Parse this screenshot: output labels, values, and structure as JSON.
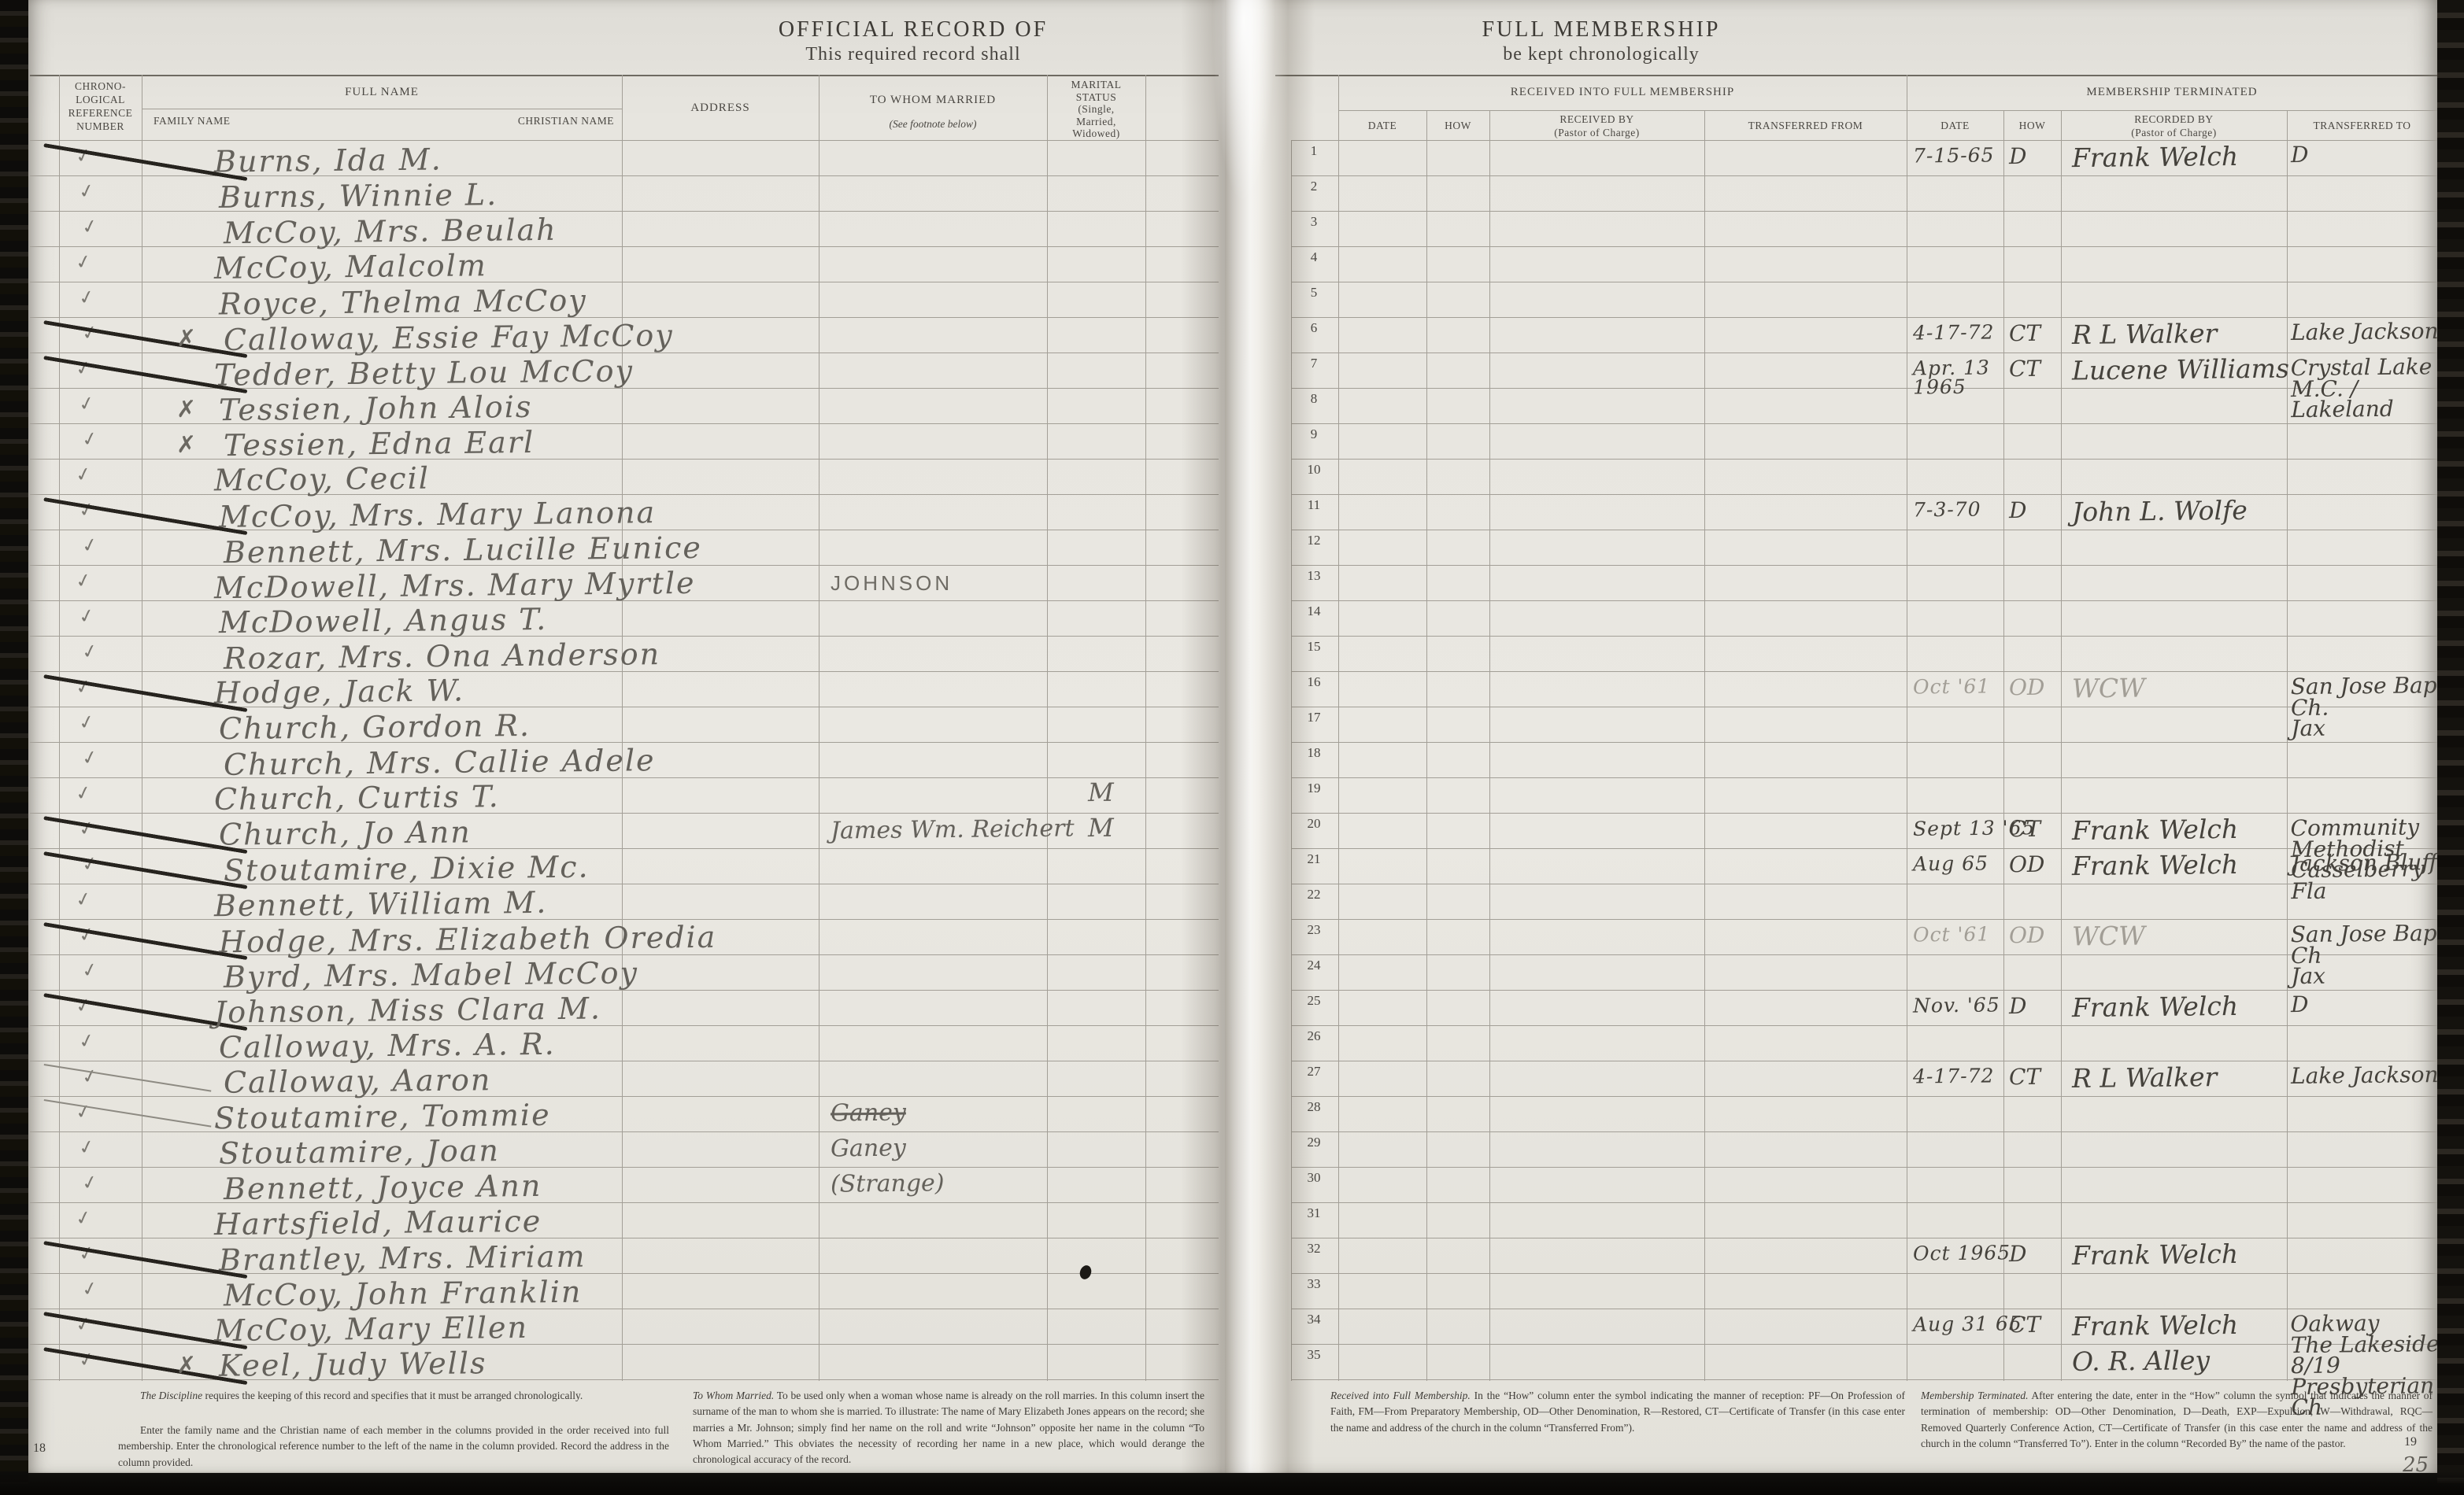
{
  "left": {
    "title": "OFFICIAL RECORD OF",
    "subtitle": "This required record shall",
    "page_number": "18",
    "columns": {
      "chrono": "CHRONO-\nLOGICAL\nREFERENCE\nNUMBER",
      "full_name": "FULL NAME",
      "family_name": "FAMILY NAME",
      "christian_name": "CHRISTIAN NAME",
      "address": "ADDRESS",
      "to_whom_married": "TO WHOM MARRIED",
      "to_whom_married_note": "(See footnote below)",
      "marital": "MARITAL\nSTATUS\n(Single,\nMarried,\nWidowed)"
    },
    "footnotes": {
      "fn1_lead": "The Discipline",
      "fn1_rest": " requires the keeping of this record and specifies that it must be arranged chronologically.",
      "fn2": "Enter the family name and the Christian name of each member in the columns provided in the order received into full membership. Enter the chronological reference number to the left of the name in the column provided. Record the address in the column provided.",
      "fn3_lead": "To Whom Married.",
      "fn3_rest": " To be used only when a woman whose name is already on the roll marries. In this column insert the surname of the man to whom she is married. To illustrate: The name of Mary Elizabeth Jones appears on the record; she marries a Mr. Johnson; simply find her name on the roll and write “Johnson” opposite her name in the column “To Whom Married.” This obviates the necessity of recording her name in a new place, which would derange the chronological accuracy of the record."
    }
  },
  "right": {
    "title": "FULL MEMBERSHIP",
    "subtitle": "be kept chronologically",
    "page_number": "19",
    "page_number_pencil": "25",
    "columns": {
      "received_span": "RECEIVED INTO FULL MEMBERSHIP",
      "terminated_span": "MEMBERSHIP TERMINATED",
      "date": "DATE",
      "how": "HOW",
      "received_by": "RECEIVED BY\n(Pastor of Charge)",
      "transferred_from": "TRANSFERRED FROM",
      "recorded_by": "RECORDED BY\n(Pastor of Charge)",
      "transferred_to": "TRANSFERRED TO"
    },
    "footnotes": {
      "fn1_lead": "Received into Full Membership.",
      "fn1_rest": " In the “How” column enter the symbol indicating the manner of reception: PF—On Profession of Faith, FM—From Preparatory Membership, OD—Other Denomination, R—Restored, CT—Certificate of Transfer (in this case enter the name and address of the church in the column “Transferred From”).",
      "fn2_lead": "Membership Terminated.",
      "fn2_rest": " After entering the date, enter in the “How” column the symbol that indicates the manner of termination of membership: OD—Other Denomination, D—Death, EXP—Expulsion, W—Withdrawal, RQC—Removed Quarterly Conference Action, CT—Certificate of Transfer (in this case enter the name and address of the church in the column “Transferred To”). Enter in the column “Recorded By” the name of the pastor."
    }
  },
  "marks": {
    "check_glyph": "✓",
    "x_glyph": "✗"
  },
  "rows": [
    {
      "n": "1",
      "name": "Burns, Ida M.",
      "check": true,
      "strike": "heavy",
      "t_date": "7-15-65",
      "t_how": "D",
      "t_rec": "Frank Welch",
      "t_to": "D"
    },
    {
      "n": "2",
      "name": "Burns, Winnie L.",
      "check": true
    },
    {
      "n": "3",
      "name": "McCoy, Mrs. Beulah",
      "check": true
    },
    {
      "n": "4",
      "name": "McCoy, Malcolm",
      "check": true
    },
    {
      "n": "5",
      "name": "Royce, Thelma McCoy",
      "check": true
    },
    {
      "n": "6",
      "name": "Calloway, Essie Fay McCoy",
      "check": true,
      "xmark": true,
      "strike": "heavy",
      "t_date": "4-17-72",
      "t_how": "CT",
      "t_rec": "R L Walker",
      "t_to": "Lake Jackson"
    },
    {
      "n": "7",
      "name": "Tedder, Betty Lou McCoy",
      "check": true,
      "strike": "heavy",
      "t_date": "Apr. 13\n1965",
      "t_how": "CT",
      "t_rec": "Lucene Williams",
      "t_to": "Crystal Lake M.C. /\nLakeland"
    },
    {
      "n": "8",
      "name": "Tessien, John Alois",
      "check": true,
      "xmark": true
    },
    {
      "n": "9",
      "name": "Tessien, Edna Earl",
      "check": true,
      "xmark": true
    },
    {
      "n": "10",
      "name": "McCoy, Cecil",
      "check": true
    },
    {
      "n": "11",
      "name": "McCoy, Mrs. Mary Lanona",
      "check": true,
      "strike": "heavy",
      "t_date": "7-3-70",
      "t_how": "D",
      "t_rec": "John L. Wolfe"
    },
    {
      "n": "12",
      "name": "Bennett, Mrs. Lucille Eunice",
      "check": true
    },
    {
      "n": "13",
      "name": "McDowell, Mrs. Mary Myrtle",
      "check": true,
      "married": "JOHNSON",
      "married_print": true
    },
    {
      "n": "14",
      "name": "McDowell, Angus T.",
      "check": true
    },
    {
      "n": "15",
      "name": "Rozar, Mrs. Ona Anderson",
      "check": true
    },
    {
      "n": "16",
      "name": "Hodge, Jack W.",
      "check": true,
      "strike": "heavy",
      "t_faint": true,
      "t_date": "Oct '61",
      "t_how": "OD",
      "t_rec": "WCW",
      "t_to": "San Jose Bap. Ch.\nJax"
    },
    {
      "n": "17",
      "name": "Church, Gordon R.",
      "check": true
    },
    {
      "n": "18",
      "name": "Church, Mrs. Callie Adele",
      "check": true
    },
    {
      "n": "19",
      "name": "Church, Curtis T.",
      "check": true,
      "marital": "M"
    },
    {
      "n": "20",
      "name": "Church, Jo Ann",
      "check": true,
      "strike": "heavy",
      "married": "James Wm. Reichert",
      "marital": "M",
      "t_date": "Sept 13 '65",
      "t_how": "CT",
      "t_rec": "Frank Welch",
      "t_to": "Community Methodist\nCasselberry Fla"
    },
    {
      "n": "21",
      "name": "Stoutamire, Dixie Mc.",
      "check": true,
      "strike": "heavy",
      "t_date": "Aug 65",
      "t_how": "OD",
      "t_rec": "Frank Welch",
      "t_to": "Jackson Bluff"
    },
    {
      "n": "22",
      "name": "Bennett, William M.",
      "check": true
    },
    {
      "n": "23",
      "name": "Hodge, Mrs. Elizabeth Oredia",
      "check": true,
      "strike": "heavy",
      "t_faint": true,
      "t_date": "Oct '61",
      "t_how": "OD",
      "t_rec": "WCW",
      "t_to": "San Jose Bap Ch\nJax"
    },
    {
      "n": "24",
      "name": "Byrd, Mrs. Mabel McCoy",
      "check": true
    },
    {
      "n": "25",
      "name": "Johnson, Miss Clara M.",
      "check": true,
      "strike": "heavy",
      "t_date": "Nov. '65",
      "t_how": "D",
      "t_rec": "Frank Welch",
      "t_to": "D"
    },
    {
      "n": "26",
      "name": "Calloway, Mrs. A. R.",
      "check": true
    },
    {
      "n": "27",
      "name": "Calloway, Aaron",
      "check": true,
      "strike": "light",
      "t_date": "4-17-72",
      "t_how": "CT",
      "t_rec": "R L Walker",
      "t_to": "Lake Jackson"
    },
    {
      "n": "28",
      "name": "Stoutamire, Tommie",
      "check": true,
      "strike": "light",
      "married": "Ganey",
      "married_struck": true
    },
    {
      "n": "29",
      "name": "Stoutamire, Joan",
      "check": true,
      "married": "Ganey"
    },
    {
      "n": "30",
      "name": "Bennett, Joyce Ann",
      "check": true,
      "married": "(Strange)"
    },
    {
      "n": "31",
      "name": "Hartsfield, Maurice",
      "check": true
    },
    {
      "n": "32",
      "name": "Brantley, Mrs. Miriam",
      "check": true,
      "strike": "heavy",
      "t_date": "Oct 1965",
      "t_how": "D",
      "t_rec": "Frank Welch"
    },
    {
      "n": "33",
      "name": "McCoy, John Franklin",
      "check": true
    },
    {
      "n": "34",
      "name": "McCoy, Mary Ellen",
      "check": true,
      "strike": "heavy",
      "t_date": "Aug 31 65",
      "t_how": "CT",
      "t_rec": "Frank Welch",
      "t_to": "Oakway\nThe Lakeside 8/19\nPresbyterian Ch"
    },
    {
      "n": "35",
      "name": "Keel, Judy Wells",
      "check": true,
      "xmark": true,
      "strike": "heavy",
      "t_rec": "O. R. Alley"
    }
  ]
}
